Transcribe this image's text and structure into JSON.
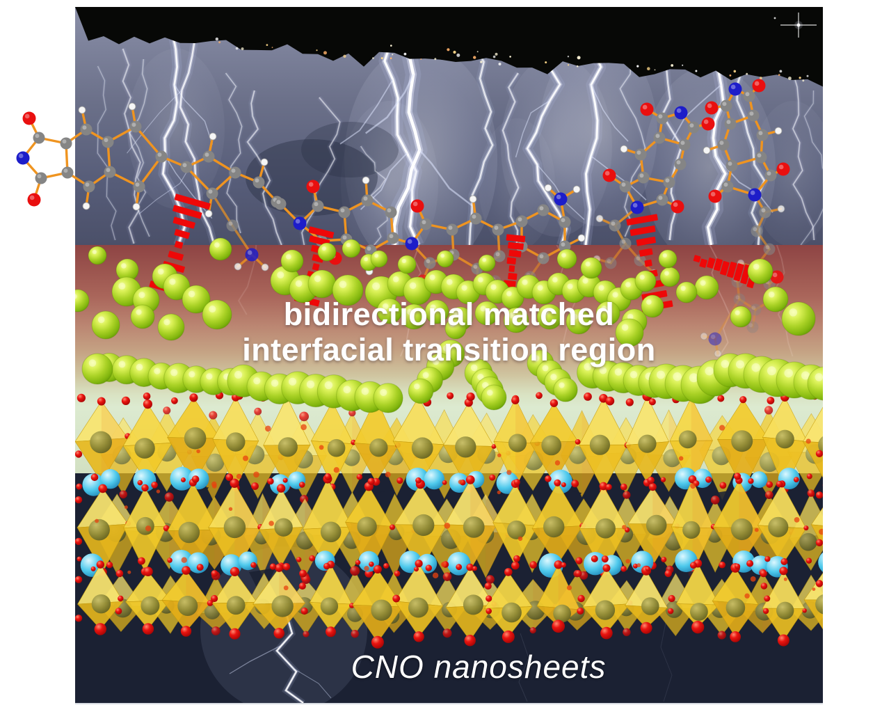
{
  "annotations": {
    "interfacial_label_line1": "bidirectional matched",
    "interfacial_label_line2": "interfacial transition region",
    "material_label": "CNO nanosheets"
  },
  "palette": {
    "bond_orange": "#ef9420",
    "carbon_gray": "#858585",
    "nitrogen_blue": "#1d1dc9",
    "oxygen_red": "#e90f0f",
    "hydrogen_white": "#f6f6f6",
    "faded_carbon": "#a8705e",
    "purple_atom": "#8666c2",
    "green_sphere": "#aad226",
    "octahedra_yellow": "#f3cc2e",
    "octahedra_core_olive": "#8f8a38",
    "red_vertex": "#ea1410",
    "cyan_sphere": "#4ec9ec",
    "hbond_red": "#ee0808",
    "sky_top": "#8a8fa8",
    "sky_bottom": "#4b5069",
    "transition_red": "#8e4444",
    "transition_green": "#dcead0",
    "background_navy": "#1b2133",
    "label_white": "#ffffff"
  }
}
